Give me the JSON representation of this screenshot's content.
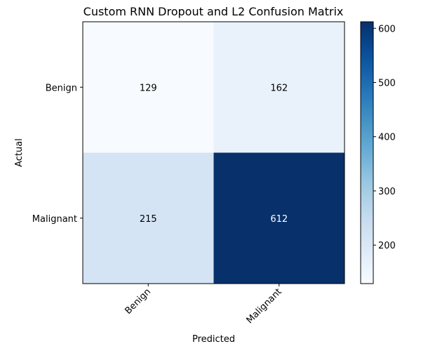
{
  "chart_data": {
    "type": "heatmap",
    "title": "Custom RNN Dropout and L2 Confusion Matrix",
    "xlabel": "Predicted",
    "ylabel": "Actual",
    "x_categories": [
      "Benign",
      "Malignant"
    ],
    "y_categories": [
      "Benign",
      "Malignant"
    ],
    "values": [
      [
        129,
        162
      ],
      [
        215,
        612
      ]
    ],
    "cell_labels": [
      [
        "129",
        "162"
      ],
      [
        "215",
        "612"
      ]
    ],
    "colormap": "Blues",
    "colorbar": {
      "range": [
        129,
        612
      ],
      "ticks": [
        200,
        300,
        400,
        500,
        600
      ],
      "tick_labels": [
        "200",
        "300",
        "400",
        "500",
        "600"
      ]
    },
    "grid": false
  }
}
